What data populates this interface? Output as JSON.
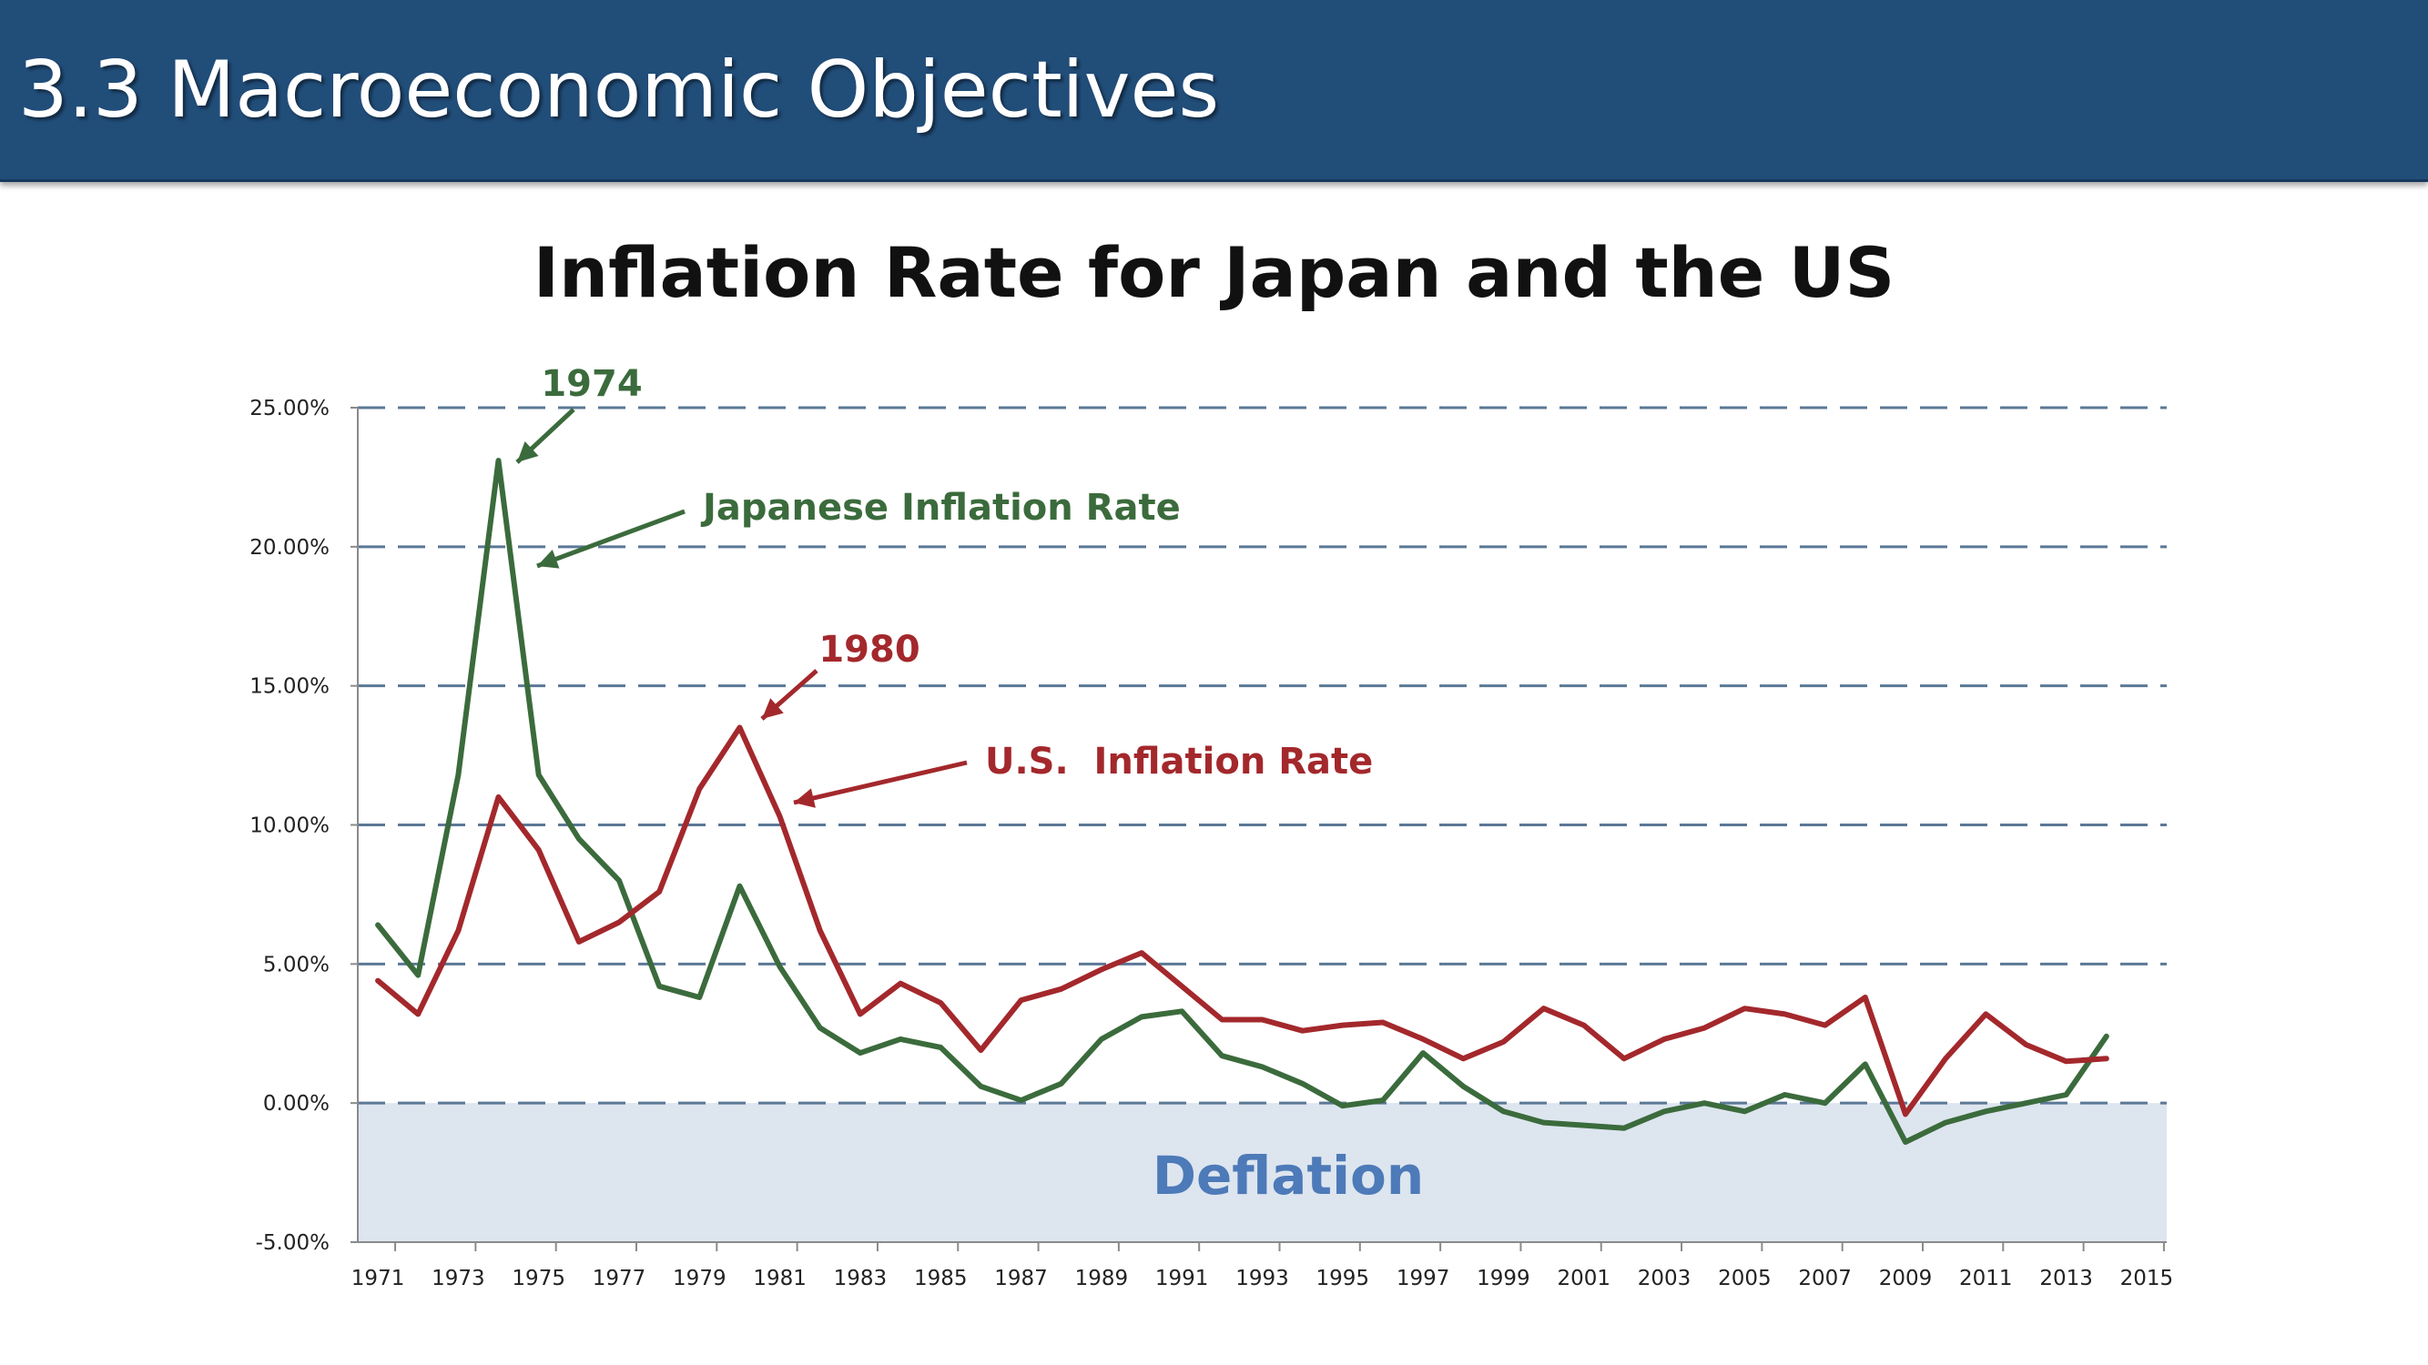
{
  "slide": {
    "title": "3.3 Macroeconomic Objectives"
  },
  "chart_data": {
    "type": "line",
    "title": "Inflation Rate for Japan and the US",
    "xlabel": "",
    "ylabel": "",
    "x": [
      1971,
      1972,
      1973,
      1974,
      1975,
      1976,
      1977,
      1978,
      1979,
      1980,
      1981,
      1982,
      1983,
      1984,
      1985,
      1986,
      1987,
      1988,
      1989,
      1990,
      1991,
      1992,
      1993,
      1994,
      1995,
      1996,
      1997,
      1998,
      1999,
      2000,
      2001,
      2002,
      2003,
      2004,
      2005,
      2006,
      2007,
      2008,
      2009,
      2010,
      2011,
      2012,
      2013,
      2014
    ],
    "series": [
      {
        "name": "Japanese Inflation Rate",
        "color": "#3b6b3c",
        "values": [
          6.4,
          4.6,
          11.8,
          23.1,
          11.8,
          9.5,
          8.0,
          4.2,
          3.8,
          7.8,
          4.9,
          2.7,
          1.8,
          2.3,
          2.0,
          0.6,
          0.1,
          0.7,
          2.3,
          3.1,
          3.3,
          1.7,
          1.3,
          0.7,
          -0.1,
          0.1,
          1.8,
          0.6,
          -0.3,
          -0.7,
          -0.8,
          -0.9,
          -0.3,
          0.0,
          -0.3,
          0.3,
          0.0,
          1.4,
          -1.4,
          -0.7,
          -0.3,
          0.0,
          0.3,
          2.4
        ]
      },
      {
        "name": "U.S.  Inflation Rate",
        "color": "#a3282c",
        "values": [
          4.4,
          3.2,
          6.2,
          11.0,
          9.1,
          5.8,
          6.5,
          7.6,
          11.3,
          13.5,
          10.3,
          6.2,
          3.2,
          4.3,
          3.6,
          1.9,
          3.7,
          4.1,
          4.8,
          5.4,
          4.2,
          3.0,
          3.0,
          2.6,
          2.8,
          2.9,
          2.3,
          1.6,
          2.2,
          3.4,
          2.8,
          1.6,
          2.3,
          2.7,
          3.4,
          3.2,
          2.8,
          3.8,
          -0.4,
          1.6,
          3.2,
          2.1,
          1.5,
          1.6
        ]
      }
    ],
    "ylim": [
      -5,
      25
    ],
    "yticks": [
      -5,
      0,
      5,
      10,
      15,
      20,
      25
    ],
    "ytick_labels": [
      "-5.00%",
      "0.00%",
      "5.00%",
      "10.00%",
      "15.00%",
      "20.00%",
      "25.00%"
    ],
    "xticks": [
      1971,
      1973,
      1975,
      1977,
      1979,
      1981,
      1983,
      1985,
      1987,
      1989,
      1991,
      1993,
      1995,
      1997,
      1999,
      2001,
      2003,
      2005,
      2007,
      2009,
      2011,
      2013,
      2015
    ],
    "xlim": [
      1970.5,
      2015.5
    ],
    "grid": true,
    "shaded_region": {
      "label": "Deflation",
      "y_from": -5,
      "y_to": 0,
      "color": "#dde5ef"
    },
    "annotations": [
      {
        "text": "1974",
        "color": "#3b6b3c",
        "x": 1974,
        "y": 23.1
      },
      {
        "text": "Japanese Inflation Rate",
        "color": "#3b6b3c",
        "x": 1975,
        "y": 19.5
      },
      {
        "text": "1980",
        "color": "#a3282c",
        "x": 1980,
        "y": 13.5
      },
      {
        "text": "U.S.  Inflation Rate",
        "color": "#a3282c",
        "x": 1981.3,
        "y": 10.9
      }
    ]
  }
}
